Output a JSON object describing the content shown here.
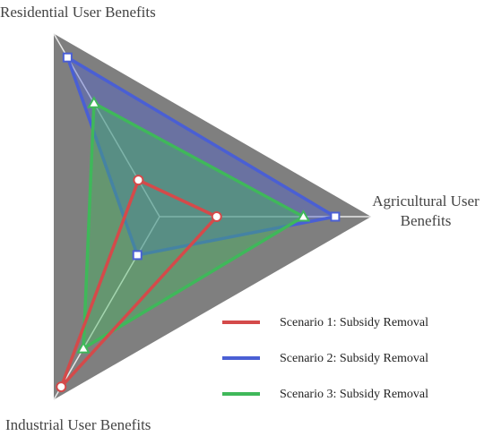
{
  "chart_data": {
    "type": "radar",
    "categories": [
      "Residential User Benefits",
      "Agricultural User Benefits",
      "Industrial User Benefits"
    ],
    "rlim": [
      0,
      1
    ],
    "series": [
      {
        "name": "Scenario 1: Subsidy Removal",
        "color": "#d44a4a",
        "marker": "circle",
        "filled": false,
        "values": [
          0.2,
          0.27,
          0.93
        ]
      },
      {
        "name": "Scenario 2: Subsidy Removal",
        "color": "#4a5fd4",
        "marker": "square",
        "filled": true,
        "values": [
          0.87,
          0.83,
          0.21
        ]
      },
      {
        "name": "Scenario 3: Subsidy Removal",
        "color": "#3fb85a",
        "marker": "triangle",
        "filled": true,
        "values": [
          0.62,
          0.68,
          0.72
        ]
      }
    ]
  }
}
